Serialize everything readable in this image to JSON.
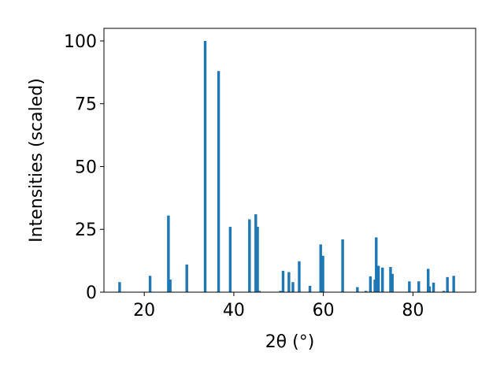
{
  "chart_data": {
    "type": "bar",
    "title": "",
    "xlabel": "2θ (°)",
    "ylabel": "Intensities (scaled)",
    "xlim": [
      11,
      94
    ],
    "ylim": [
      0,
      105
    ],
    "xticks": [
      20,
      40,
      60,
      80
    ],
    "yticks": [
      0,
      25,
      50,
      75,
      100
    ],
    "grid": false,
    "legend": "none",
    "bar_color": "#1f77b4",
    "bar_width": 0.6,
    "x": [
      14.5,
      21.3,
      25.4,
      25.8,
      29.5,
      33.6,
      36.6,
      39.2,
      43.5,
      44.9,
      45.3,
      45.7,
      50.4,
      51.0,
      52.3,
      53.2,
      54.6,
      57.0,
      59.4,
      59.9,
      64.3,
      67.6,
      69.5,
      70.5,
      71.5,
      71.8,
      72.3,
      73.2,
      75.0,
      75.4,
      79.2,
      81.3,
      83.4,
      83.7,
      84.6,
      86.9,
      87.7,
      89.1
    ],
    "values": [
      4,
      6.5,
      30.5,
      5,
      11,
      100,
      88,
      26,
      29,
      31,
      26,
      0.5,
      0.5,
      8.5,
      8,
      4,
      12.3,
      2.5,
      19,
      14.5,
      21,
      2,
      0.5,
      6.3,
      5,
      21.8,
      10.5,
      9.8,
      10,
      7.3,
      4.3,
      4.3,
      9.3,
      2.3,
      3.8,
      0.5,
      6,
      6.5
    ]
  }
}
